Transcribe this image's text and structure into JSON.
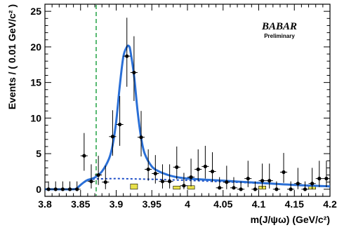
{
  "chart_data": {
    "type": "scatter",
    "title": "",
    "xlabel": "m(J/ψω) (GeV/c²)",
    "ylabel": "Events / ( 0.01 GeV/c² )",
    "xlim": [
      3.8,
      4.2
    ],
    "ylim": [
      -1,
      26
    ],
    "xticks": [
      3.8,
      3.85,
      3.9,
      3.95,
      4.0,
      4.05,
      4.1,
      4.15,
      4.2
    ],
    "xtick_labels": [
      "3.8",
      "3.85",
      "3.9",
      "3.95",
      "4",
      "4.05",
      "4.1",
      "4.15",
      "4.2"
    ],
    "yticks": [
      0,
      5,
      10,
      15,
      20,
      25
    ],
    "ytick_labels": [
      "0",
      "5",
      "10",
      "15",
      "20",
      "25"
    ],
    "grid": false,
    "logo": {
      "main": "BABAR",
      "sub": "Preliminary"
    },
    "vertical_line": {
      "x": 3.8719,
      "style": "dashed",
      "color": "#2fa84f"
    },
    "colors": {
      "fit": "#2a6fd6",
      "background": "#1f4fc8",
      "points": "#000000",
      "wrong_sign": "#e8e04a"
    },
    "series": [
      {
        "kind": "data-points",
        "x": [
          3.805,
          3.815,
          3.825,
          3.835,
          3.845,
          3.855,
          3.865,
          3.875,
          3.885,
          3.895,
          3.905,
          3.915,
          3.925,
          3.935,
          3.945,
          3.955,
          3.965,
          3.975,
          3.985,
          3.995,
          4.005,
          4.015,
          4.025,
          4.035,
          4.045,
          4.055,
          4.065,
          4.075,
          4.085,
          4.095,
          4.105,
          4.115,
          4.125,
          4.135,
          4.145,
          4.155,
          4.165,
          4.175,
          4.185,
          4.195
        ],
        "y": [
          0,
          0,
          0,
          0,
          0,
          4.7,
          1.1,
          2.0,
          1.0,
          7.4,
          9.1,
          18.7,
          16.4,
          7.3,
          2.8,
          2.2,
          1.1,
          1.1,
          3.1,
          0.5,
          1.7,
          2.8,
          3.2,
          2.5,
          0.2,
          1.0,
          0.2,
          0,
          1.5,
          0,
          1.2,
          1.2,
          0,
          2.4,
          0,
          0.8,
          0,
          0.8,
          1.5,
          1.5
        ],
        "err_lo": [
          0,
          0,
          0,
          0,
          0,
          2.1,
          1.0,
          1.4,
          1.0,
          2.7,
          3.0,
          4.3,
          4.0,
          2.7,
          1.6,
          1.4,
          1.0,
          1.0,
          1.7,
          0.5,
          1.3,
          1.6,
          1.7,
          1.5,
          0.2,
          1.0,
          0.2,
          0,
          1.2,
          0,
          1.1,
          1.1,
          0,
          1.5,
          0,
          0.8,
          0,
          0.8,
          1.2,
          1.2
        ],
        "err_hi": [
          1.1,
          1.1,
          1.1,
          1.1,
          1.1,
          3.2,
          2.4,
          2.7,
          2.3,
          3.7,
          4.0,
          5.4,
          5.1,
          3.7,
          2.8,
          2.6,
          2.4,
          2.4,
          2.9,
          1.8,
          2.6,
          2.8,
          2.9,
          2.7,
          1.5,
          2.3,
          1.5,
          1.1,
          2.5,
          1.1,
          2.4,
          2.4,
          1.1,
          2.7,
          1.1,
          2.2,
          1.1,
          2.2,
          2.5,
          2.5
        ]
      },
      {
        "kind": "fit-total",
        "x": [
          3.8,
          3.84,
          3.845,
          3.85,
          3.855,
          3.86,
          3.87,
          3.88,
          3.89,
          3.895,
          3.9,
          3.905,
          3.91,
          3.915,
          3.918,
          3.92,
          3.925,
          3.93,
          3.935,
          3.94,
          3.95,
          3.96,
          3.97,
          3.98,
          4.0,
          4.05,
          4.1,
          4.15,
          4.2
        ],
        "y": [
          0,
          0,
          0.15,
          0.6,
          1.0,
          1.3,
          1.65,
          2.5,
          4.3,
          6.2,
          9.5,
          14.5,
          18.6,
          20.0,
          20.1,
          19.4,
          16.0,
          11.0,
          7.2,
          5.0,
          3.2,
          2.5,
          2.1,
          1.8,
          1.5,
          1.2,
          0.9,
          0.6,
          0.4
        ]
      },
      {
        "kind": "fit-background",
        "x": [
          3.8,
          3.84,
          3.845,
          3.85,
          3.855,
          3.86,
          3.87,
          3.9,
          3.95,
          4.0,
          4.05,
          4.1,
          4.15,
          4.2
        ],
        "y": [
          0,
          0,
          0.15,
          0.6,
          1.0,
          1.25,
          1.45,
          1.5,
          1.4,
          1.25,
          1.05,
          0.85,
          0.6,
          0.35
        ]
      },
      {
        "kind": "wrong-sign-boxes",
        "x": [
          3.925,
          3.985,
          4.005,
          4.105,
          4.175
        ],
        "y": [
          0.75,
          0.45,
          0.5,
          0.45,
          0.45
        ]
      }
    ]
  }
}
